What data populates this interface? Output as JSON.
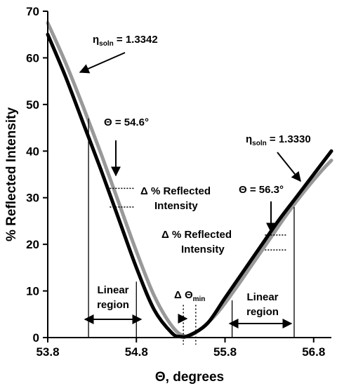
{
  "chart_data": {
    "type": "line",
    "title": "",
    "xlabel": "Θ, degrees",
    "ylabel": "% Reflected Intensity",
    "xlim": [
      53.8,
      57.0
    ],
    "ylim": [
      0,
      70
    ],
    "xticks": [
      53.8,
      54.8,
      55.8,
      56.8
    ],
    "xtick_labels": [
      "53.8",
      "54.8",
      "55.8",
      "56.8"
    ],
    "yticks": [
      0,
      10,
      20,
      30,
      40,
      50,
      60,
      70
    ],
    "ytick_labels": [
      "0",
      "10",
      "20",
      "30",
      "40",
      "50",
      "60",
      "70"
    ],
    "grid": false,
    "legend": "none",
    "series": [
      {
        "color": "#000000",
        "x": [
          53.8,
          54.0,
          54.2,
          54.4,
          54.6,
          54.8,
          55.0,
          55.2,
          55.3,
          55.4,
          55.6,
          55.8,
          56.0,
          56.2,
          56.4,
          56.6,
          56.8,
          57.0
        ],
        "y": [
          65,
          56,
          46,
          36,
          25.5,
          15,
          6,
          1,
          0.2,
          0.5,
          3,
          8.5,
          14,
          19.5,
          25,
          30,
          35,
          40
        ]
      },
      {
        "color": "#999999",
        "x": [
          53.8,
          54.0,
          54.2,
          54.4,
          54.6,
          54.8,
          55.0,
          55.2,
          55.35,
          55.5,
          55.7,
          55.9,
          56.1,
          56.3,
          56.5,
          56.7,
          56.9,
          57.0
        ],
        "y": [
          67.5,
          59,
          49.5,
          39.5,
          29,
          18.5,
          9,
          2.5,
          0.3,
          1.5,
          5,
          10,
          15.5,
          21,
          26.5,
          31.5,
          36,
          38
        ]
      }
    ],
    "annotations": {
      "eta_left_symbol": "η",
      "eta_left_sub": "soln",
      "eta_left_value": "= 1.3342",
      "eta_right_symbol": "η",
      "eta_right_sub": "soln",
      "eta_right_value": "= 1.3330",
      "theta_left": "Θ = 54.6°",
      "theta_right": "Θ = 56.3°",
      "delta_left_line1": "Δ  % Reflected",
      "delta_left_line2": "Intensity",
      "delta_right_line1": "Δ  % Reflected",
      "delta_right_line2": "Intensity",
      "linear_left_line1": "Linear",
      "linear_left_line2": "region",
      "linear_right_line1": "Linear",
      "linear_right_line2": "region",
      "delta_theta_prefix": "Δ Θ",
      "delta_theta_sub": "min"
    }
  }
}
